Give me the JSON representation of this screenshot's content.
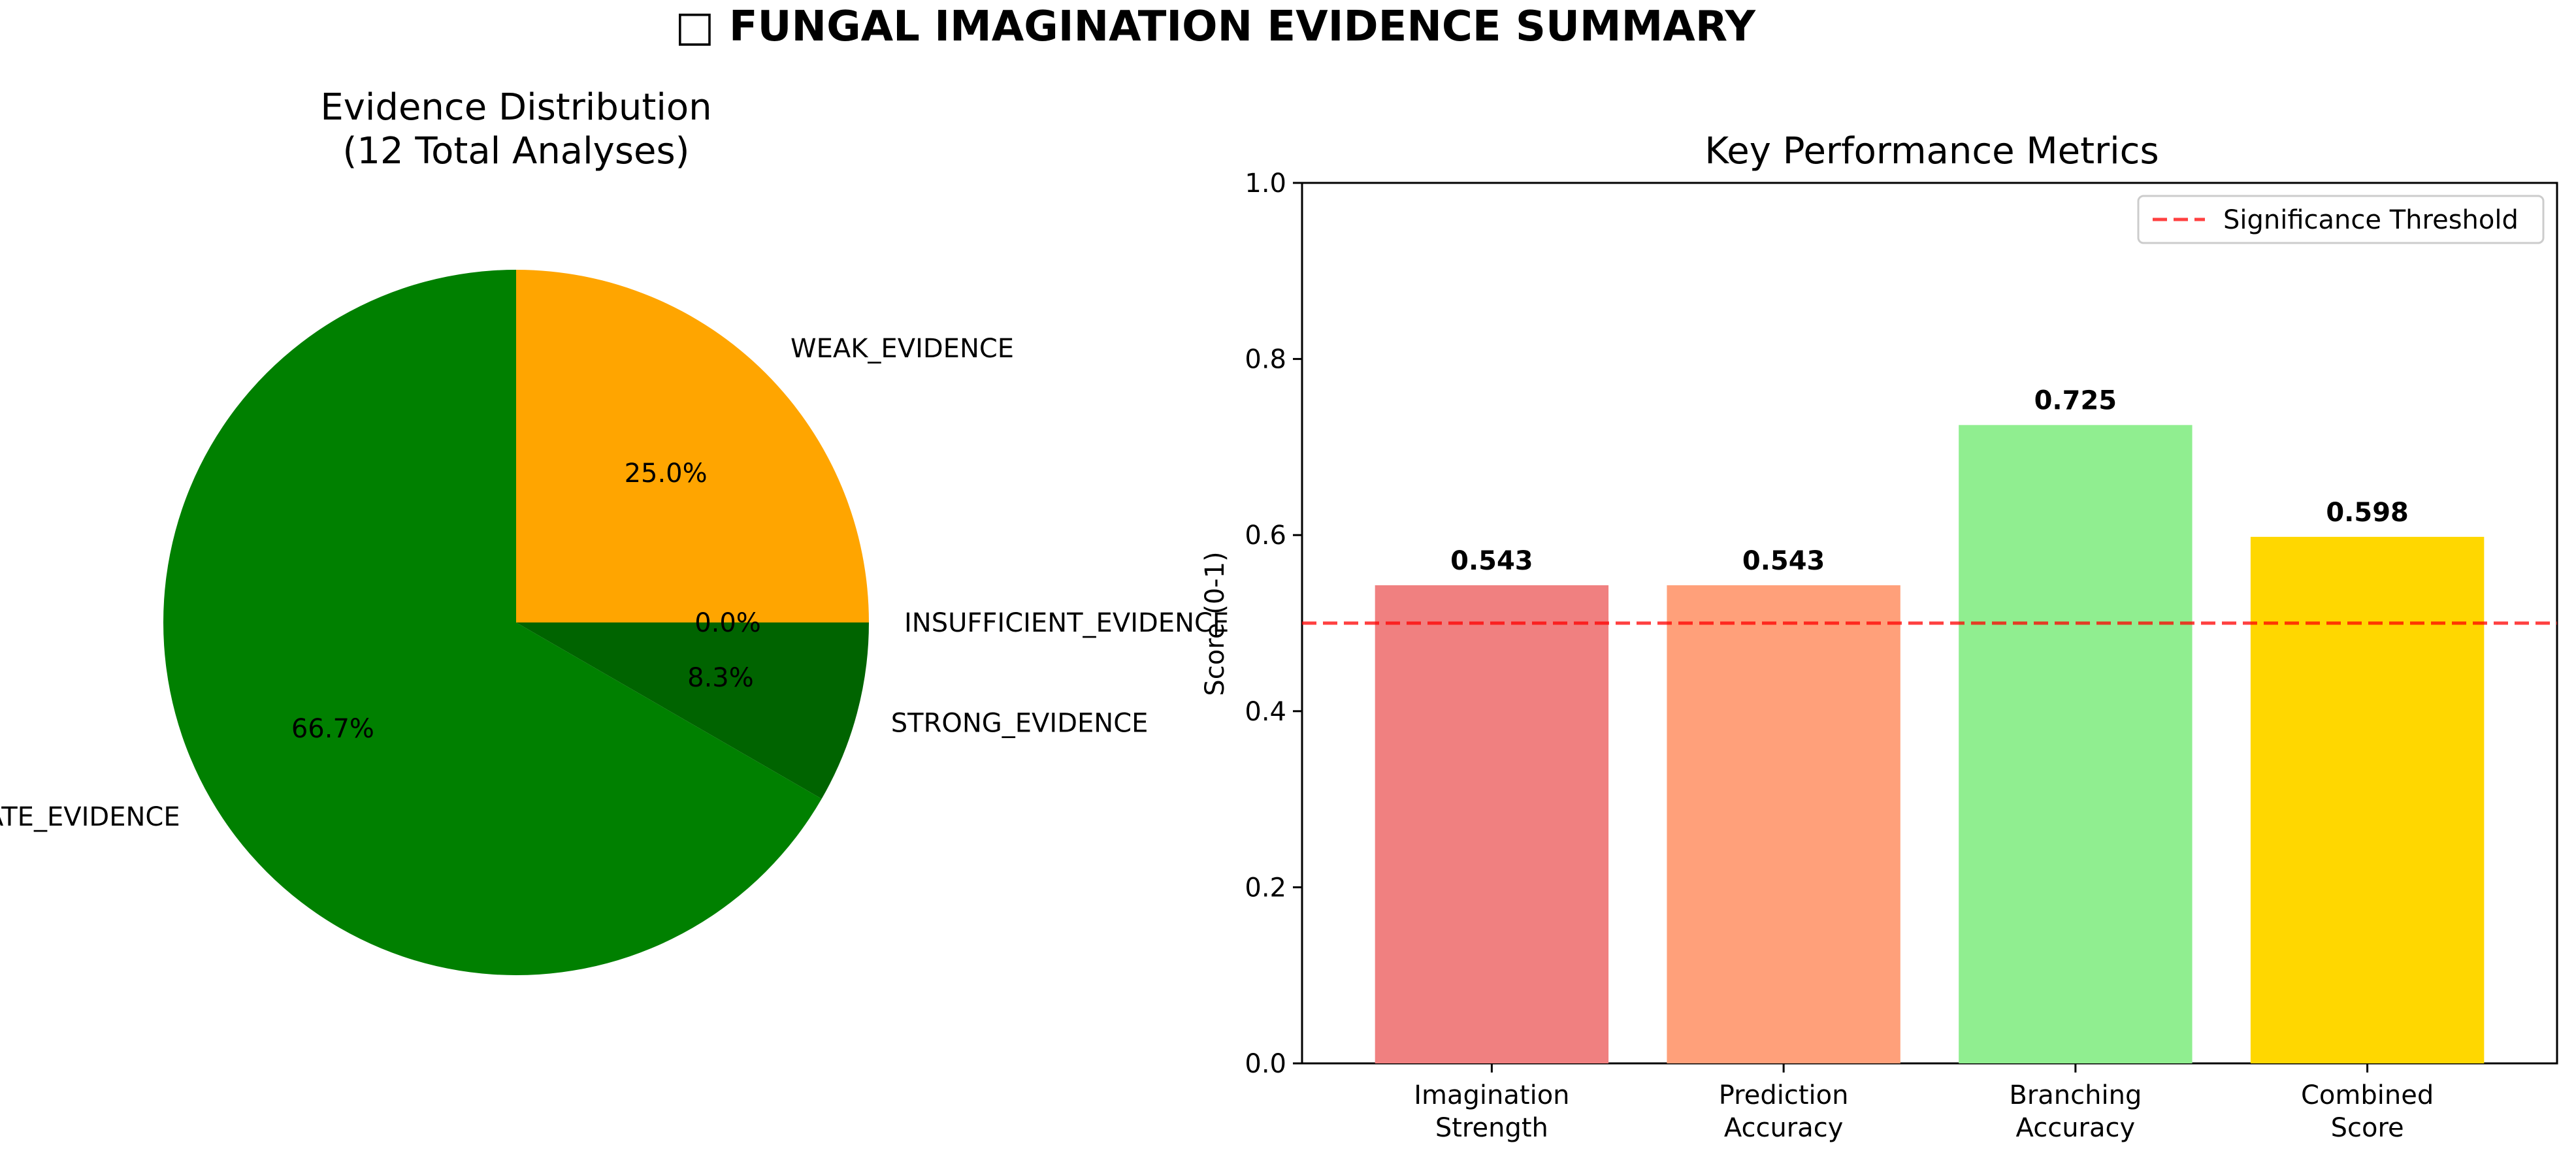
{
  "figure": {
    "title": "□ FUNGAL IMAGINATION EVIDENCE SUMMARY"
  },
  "chart_data": [
    {
      "type": "pie",
      "title_line1": "Evidence Distribution",
      "title_line2": "(12 Total Analyses)",
      "slices": [
        {
          "label": "WEAK_EVIDENCE",
          "value": 3,
          "pct_label": "25.0%",
          "color": "#ffa500"
        },
        {
          "label": "MODERATE_EVIDENCE",
          "value": 8,
          "pct_label": "66.7%",
          "color": "#008000"
        },
        {
          "label": "STRONG_EVIDENCE",
          "value": 1,
          "pct_label": "8.3%",
          "color": "#006400"
        },
        {
          "label": "INSUFFICIENT_EVIDENCE",
          "value": 0,
          "pct_label": "0.0%",
          "color": "#8b0000"
        }
      ]
    },
    {
      "type": "bar",
      "title": "Key Performance Metrics",
      "ylabel": "Score (0-1)",
      "ylim": [
        0,
        1.0
      ],
      "yticks": [
        "0.0",
        "0.2",
        "0.4",
        "0.6",
        "0.8",
        "1.0"
      ],
      "bars": [
        {
          "label_line1": "Imagination",
          "label_line2": "Strength",
          "value": 0.543,
          "value_label": "0.543",
          "color": "#f08080"
        },
        {
          "label_line1": "Prediction",
          "label_line2": "Accuracy",
          "value": 0.543,
          "value_label": "0.543",
          "color": "#ffa07a"
        },
        {
          "label_line1": "Branching",
          "label_line2": "Accuracy",
          "value": 0.725,
          "value_label": "0.725",
          "color": "#90ee90"
        },
        {
          "label_line1": "Combined",
          "label_line2": "Score",
          "value": 0.598,
          "value_label": "0.598",
          "color": "#ffd700"
        }
      ],
      "threshold": {
        "value": 0.5,
        "label": "Significance Threshold",
        "color": "#ff0000"
      },
      "legend_position": "top-right"
    }
  ]
}
